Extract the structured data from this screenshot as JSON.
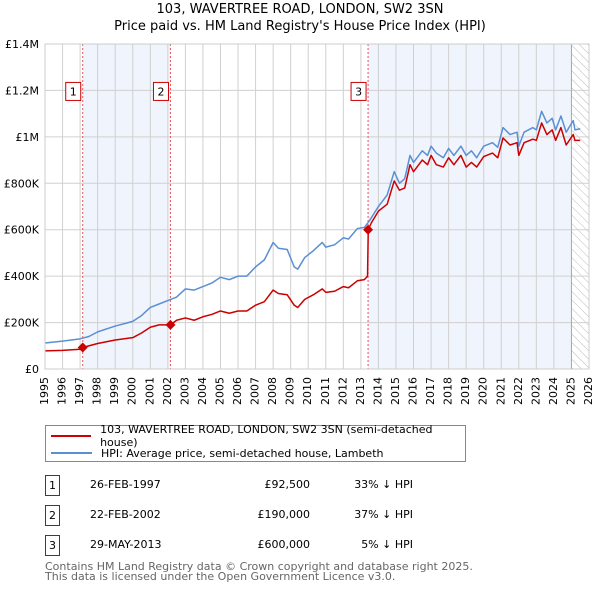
{
  "title": "103, WAVERTREE ROAD, LONDON, SW2 3SN",
  "subtitle": "Price paid vs. HM Land Registry's House Price Index (HPI)",
  "chart_data": {
    "type": "line",
    "xlim": [
      1995,
      2026
    ],
    "ylim": [
      0,
      1400000
    ],
    "x_ticks": [
      "1995",
      "1996",
      "1997",
      "1998",
      "1999",
      "2000",
      "2001",
      "2002",
      "2003",
      "2004",
      "2005",
      "2006",
      "2007",
      "2008",
      "2009",
      "2010",
      "2011",
      "2012",
      "2013",
      "2014",
      "2015",
      "2016",
      "2017",
      "2018",
      "2019",
      "2020",
      "2021",
      "2022",
      "2023",
      "2024",
      "2025",
      "2026"
    ],
    "y_ticks": [
      {
        "v": 0,
        "label": "£0"
      },
      {
        "v": 200000,
        "label": "£200K"
      },
      {
        "v": 400000,
        "label": "£400K"
      },
      {
        "v": 600000,
        "label": "£600K"
      },
      {
        "v": 800000,
        "label": "£800K"
      },
      {
        "v": 1000000,
        "label": "£1M"
      },
      {
        "v": 1200000,
        "label": "£1.2M"
      },
      {
        "v": 1400000,
        "label": "£1.4M"
      }
    ],
    "grid": true,
    "shaded_ranges": [
      [
        1997.15,
        2002.15
      ],
      [
        2013.41,
        2025.0
      ]
    ],
    "hatched_range": [
      2025.0,
      2026
    ],
    "series": [
      {
        "name": "103, WAVERTREE ROAD, LONDON, SW2 3SN (semi-detached house)",
        "color": "#cc0000",
        "x": [
          1995,
          1996,
          1997,
          1997.15,
          1998,
          1999,
          2000,
          2000.5,
          2001,
          2001.5,
          2002.15,
          2002.5,
          2003,
          2003.5,
          2004,
          2004.5,
          2005,
          2005.5,
          2006,
          2006.5,
          2007,
          2007.5,
          2008,
          2008.3,
          2008.8,
          2009.2,
          2009.4,
          2009.8,
          2010.3,
          2010.8,
          2011,
          2011.5,
          2012,
          2012.3,
          2012.8,
          2013.2,
          2013.38,
          2013.42,
          2013.6,
          2014,
          2014.5,
          2014.9,
          2015.2,
          2015.5,
          2015.8,
          2016,
          2016.5,
          2016.8,
          2017,
          2017.3,
          2017.7,
          2018,
          2018.3,
          2018.7,
          2019,
          2019.3,
          2019.6,
          2020,
          2020.5,
          2020.8,
          2021.1,
          2021.5,
          2021.9,
          2022,
          2022.3,
          2022.8,
          2023,
          2023.3,
          2023.6,
          2023.9,
          2024.1,
          2024.4,
          2024.7,
          2025.1,
          2025.2,
          2025.5
        ],
        "y": [
          78,
          80,
          85,
          92.5,
          110,
          125,
          135,
          155,
          180,
          190,
          190,
          210,
          220,
          210,
          225,
          235,
          250,
          240,
          250,
          250,
          275,
          290,
          340,
          325,
          320,
          275,
          265,
          300,
          320,
          345,
          330,
          335,
          355,
          350,
          380,
          385,
          400,
          600,
          630,
          680,
          710,
          810,
          770,
          780,
          880,
          850,
          900,
          880,
          920,
          880,
          870,
          910,
          880,
          920,
          870,
          890,
          870,
          915,
          930,
          910,
          995,
          965,
          975,
          920,
          975,
          990,
          985,
          1060,
          1010,
          1030,
          985,
          1040,
          965,
          1010,
          985,
          985
        ]
      },
      {
        "name": "HPI: Average price, semi-detached house, Lambeth",
        "color": "#5b8fd4",
        "x": [
          1995,
          1996,
          1997,
          1997.5,
          1998,
          1999,
          2000,
          2000.5,
          2001,
          2001.5,
          2002,
          2002.5,
          2003,
          2003.5,
          2004,
          2004.5,
          2005,
          2005.5,
          2006,
          2006.5,
          2007,
          2007.5,
          2008,
          2008.3,
          2008.8,
          2009.2,
          2009.4,
          2009.8,
          2010.3,
          2010.8,
          2011,
          2011.5,
          2012,
          2012.3,
          2012.8,
          2013.2,
          2013.5,
          2014,
          2014.5,
          2014.9,
          2015.2,
          2015.5,
          2015.8,
          2016,
          2016.5,
          2016.8,
          2017,
          2017.3,
          2017.7,
          2018,
          2018.3,
          2018.7,
          2019,
          2019.3,
          2019.6,
          2020,
          2020.5,
          2020.8,
          2021.1,
          2021.5,
          2021.9,
          2022,
          2022.3,
          2022.8,
          2023,
          2023.3,
          2023.6,
          2023.9,
          2024.1,
          2024.4,
          2024.7,
          2025.1,
          2025.2,
          2025.5
        ],
        "y": [
          112,
          120,
          130,
          140,
          160,
          185,
          205,
          230,
          265,
          280,
          295,
          310,
          345,
          340,
          355,
          370,
          395,
          385,
          400,
          400,
          440,
          470,
          545,
          520,
          515,
          440,
          430,
          480,
          510,
          545,
          525,
          535,
          565,
          560,
          605,
          610,
          640,
          700,
          750,
          850,
          800,
          820,
          920,
          890,
          940,
          920,
          960,
          930,
          910,
          950,
          920,
          960,
          920,
          940,
          910,
          960,
          975,
          955,
          1040,
          1010,
          1020,
          960,
          1020,
          1040,
          1030,
          1110,
          1060,
          1080,
          1030,
          1090,
          1020,
          1070,
          1030,
          1035
        ]
      }
    ],
    "y_units": "thousands GBP",
    "sales": [
      {
        "id": "1",
        "x": 1997.15,
        "y": 92.5
      },
      {
        "id": "2",
        "x": 2002.15,
        "y": 190
      },
      {
        "id": "3",
        "x": 2013.41,
        "y": 600
      }
    ],
    "legend_position": "below"
  },
  "legend": [
    {
      "label": "103, WAVERTREE ROAD, LONDON, SW2 3SN (semi-detached house)",
      "color": "#cc0000"
    },
    {
      "label": "HPI: Average price, semi-detached house, Lambeth",
      "color": "#5b8fd4"
    }
  ],
  "transactions": [
    {
      "num": "1",
      "date": "26-FEB-1997",
      "price": "£92,500",
      "hpi": "33% ↓ HPI"
    },
    {
      "num": "2",
      "date": "22-FEB-2002",
      "price": "£190,000",
      "hpi": "37% ↓ HPI"
    },
    {
      "num": "3",
      "date": "29-MAY-2013",
      "price": "£600,000",
      "hpi": "5% ↓ HPI"
    }
  ],
  "footer": [
    "Contains HM Land Registry data © Crown copyright and database right 2025.",
    "This data is licensed under the Open Government Licence v3.0."
  ]
}
